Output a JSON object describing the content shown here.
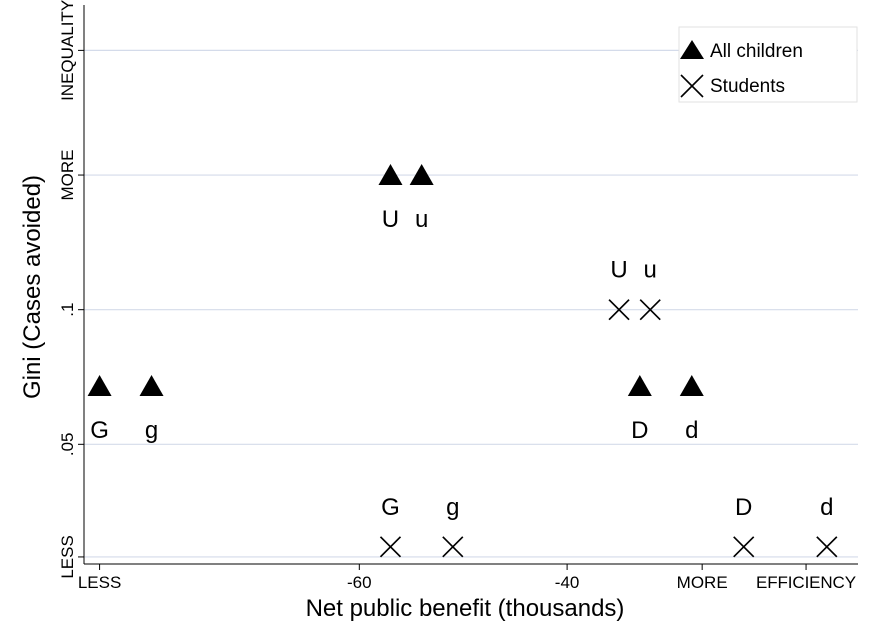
{
  "chart_data": {
    "type": "scatter",
    "xlabel": "Net public benefit (thousands)",
    "ylabel": "Gini (Cases avoided)",
    "x_ticks": [
      {
        "value": -85,
        "label": "LESS"
      },
      {
        "value": -60,
        "label": "-60"
      },
      {
        "value": -40,
        "label": "-40"
      },
      {
        "value": -27,
        "label": "MORE"
      },
      {
        "value": -17,
        "label": "EFFICIENCY"
      }
    ],
    "y_ticks": [
      {
        "value": 0.028,
        "label": "LESS"
      },
      {
        "value": 0.05,
        "label": ".05"
      },
      {
        "value": 0.1,
        "label": ".1"
      },
      {
        "value": 0.2,
        "label": "MORE"
      },
      {
        "value": 0.38,
        "label": "INEQUALITY"
      }
    ],
    "xlim": [
      -86.5,
      -12
    ],
    "ylim": [
      0.027,
      0.48
    ],
    "log_y": true,
    "grid": "horizontal",
    "legend_position": "top-right",
    "legend": [
      {
        "name": "All children",
        "marker": "triangle"
      },
      {
        "name": "Students",
        "marker": "x"
      }
    ],
    "series": [
      {
        "name": "All children",
        "marker": "triangle",
        "points": [
          {
            "x": -85,
            "y": 0.0675,
            "label": "G"
          },
          {
            "x": -80,
            "y": 0.0675,
            "label": "g"
          },
          {
            "x": -57,
            "y": 0.2,
            "label": "U"
          },
          {
            "x": -54,
            "y": 0.2,
            "label": "u"
          },
          {
            "x": -33,
            "y": 0.0675,
            "label": "D"
          },
          {
            "x": -28,
            "y": 0.0675,
            "label": "d"
          }
        ]
      },
      {
        "name": "Students",
        "marker": "x",
        "points": [
          {
            "x": -57,
            "y": 0.0295,
            "label": "G"
          },
          {
            "x": -51,
            "y": 0.0295,
            "label": "g"
          },
          {
            "x": -35,
            "y": 0.1,
            "label": "U"
          },
          {
            "x": -32,
            "y": 0.1,
            "label": "u"
          },
          {
            "x": -23,
            "y": 0.0295,
            "label": "D"
          },
          {
            "x": -15,
            "y": 0.0295,
            "label": "d"
          }
        ]
      }
    ]
  }
}
